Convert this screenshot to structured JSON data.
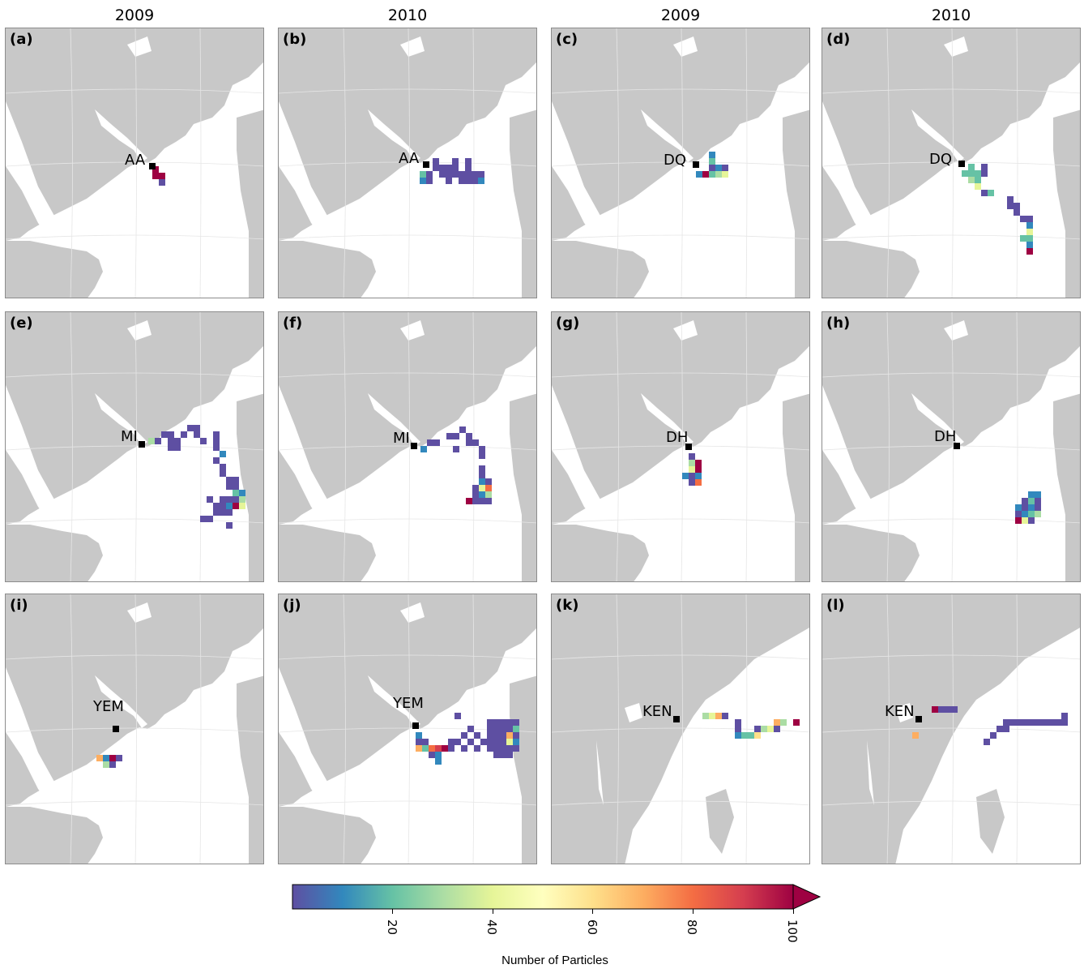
{
  "column_titles": [
    "2009",
    "2010",
    "2009",
    "2010"
  ],
  "colors": {
    "land": "#c8c8c8",
    "ocean": "#ffffff",
    "border": "#a9a9a9",
    "colormap": [
      "#5e4fa2",
      "#3288bd",
      "#66c2a5",
      "#abdda4",
      "#e6f598",
      "#ffffbf",
      "#fee08b",
      "#fdae61",
      "#f46d43",
      "#d53e4f",
      "#9e0142"
    ]
  },
  "panels": [
    {
      "label": "(a)",
      "site": "AA",
      "map": "arabia",
      "cells": [
        [
          0,
          0,
          "#9e0142"
        ],
        [
          0,
          1,
          "#9e0142"
        ],
        [
          1,
          1,
          "#9e0142"
        ],
        [
          1,
          2,
          "#5e4fa2"
        ]
      ]
    },
    {
      "label": "(b)",
      "site": "AA",
      "map": "arabia",
      "cells": [
        [
          -1,
          1,
          "#66c2a5"
        ],
        [
          0,
          1,
          "#5e4fa2"
        ],
        [
          1,
          0,
          "#5e4fa2"
        ],
        [
          1,
          -1,
          "#5e4fa2"
        ],
        [
          2,
          0,
          "#5e4fa2"
        ],
        [
          2,
          1,
          "#5e4fa2"
        ],
        [
          3,
          0,
          "#5e4fa2"
        ],
        [
          3,
          1,
          "#5e4fa2"
        ],
        [
          4,
          -1,
          "#5e4fa2"
        ],
        [
          4,
          0,
          "#5e4fa2"
        ],
        [
          4,
          1,
          "#5e4fa2"
        ],
        [
          5,
          1,
          "#5e4fa2"
        ],
        [
          5,
          2,
          "#5e4fa2"
        ],
        [
          6,
          -1,
          "#5e4fa2"
        ],
        [
          6,
          0,
          "#5e4fa2"
        ],
        [
          6,
          1,
          "#5e4fa2"
        ],
        [
          6,
          2,
          "#5e4fa2"
        ],
        [
          7,
          1,
          "#5e4fa2"
        ],
        [
          7,
          2,
          "#5e4fa2"
        ],
        [
          8,
          1,
          "#5e4fa2"
        ],
        [
          8,
          2,
          "#3288bd"
        ],
        [
          0,
          2,
          "#5e4fa2"
        ],
        [
          -1,
          2,
          "#3288bd"
        ],
        [
          3,
          2,
          "#5e4fa2"
        ]
      ]
    },
    {
      "label": "(c)",
      "site": "DQ",
      "map": "arabia",
      "cells": [
        [
          1,
          1,
          "#9e0142"
        ],
        [
          2,
          0,
          "#5e4fa2"
        ],
        [
          2,
          1,
          "#66c2a5"
        ],
        [
          3,
          0,
          "#3288bd"
        ],
        [
          3,
          1,
          "#abdda4"
        ],
        [
          4,
          0,
          "#5e4fa2"
        ],
        [
          4,
          1,
          "#e6f598"
        ],
        [
          0,
          1,
          "#3288bd"
        ],
        [
          2,
          -1,
          "#66c2a5"
        ],
        [
          2,
          -2,
          "#3288bd"
        ]
      ]
    },
    {
      "label": "(d)",
      "site": "DQ",
      "map": "arabia",
      "cells": [
        [
          0,
          1,
          "#66c2a5"
        ],
        [
          1,
          1,
          "#66c2a5"
        ],
        [
          1,
          0,
          "#66c2a5"
        ],
        [
          2,
          1,
          "#66c2a5"
        ],
        [
          3,
          0,
          "#5e4fa2"
        ],
        [
          3,
          1,
          "#5e4fa2"
        ],
        [
          2,
          2,
          "#66c2a5"
        ],
        [
          1,
          2,
          "#abdda4"
        ],
        [
          2,
          3,
          "#e6f598"
        ],
        [
          3,
          4,
          "#5e4fa2"
        ],
        [
          4,
          4,
          "#66c2a5"
        ],
        [
          7,
          5,
          "#5e4fa2"
        ],
        [
          7,
          6,
          "#5e4fa2"
        ],
        [
          8,
          6,
          "#5e4fa2"
        ],
        [
          8,
          7,
          "#5e4fa2"
        ],
        [
          9,
          8,
          "#5e4fa2"
        ],
        [
          10,
          8,
          "#5e4fa2"
        ],
        [
          10,
          9,
          "#3288bd"
        ],
        [
          10,
          10,
          "#e6f598"
        ],
        [
          10,
          11,
          "#66c2a5"
        ],
        [
          9,
          11,
          "#66c2a5"
        ],
        [
          10,
          12,
          "#3288bd"
        ],
        [
          10,
          13,
          "#9e0142"
        ]
      ]
    },
    {
      "label": "(e)",
      "site": "MI",
      "map": "arabia",
      "cells": [
        [
          1,
          -1,
          "#abdda4"
        ],
        [
          2,
          -1,
          "#5e4fa2"
        ],
        [
          3,
          -2,
          "#5e4fa2"
        ],
        [
          4,
          -2,
          "#5e4fa2"
        ],
        [
          4,
          -1,
          "#5e4fa2"
        ],
        [
          4,
          0,
          "#5e4fa2"
        ],
        [
          5,
          -1,
          "#5e4fa2"
        ],
        [
          5,
          0,
          "#5e4fa2"
        ],
        [
          6,
          -2,
          "#5e4fa2"
        ],
        [
          7,
          -3,
          "#5e4fa2"
        ],
        [
          8,
          -3,
          "#5e4fa2"
        ],
        [
          8,
          -2,
          "#5e4fa2"
        ],
        [
          9,
          -1,
          "#5e4fa2"
        ],
        [
          11,
          -2,
          "#5e4fa2"
        ],
        [
          11,
          -1,
          "#5e4fa2"
        ],
        [
          11,
          0,
          "#5e4fa2"
        ],
        [
          12,
          1,
          "#3288bd"
        ],
        [
          11,
          2,
          "#5e4fa2"
        ],
        [
          12,
          3,
          "#5e4fa2"
        ],
        [
          12,
          4,
          "#5e4fa2"
        ],
        [
          13,
          5,
          "#5e4fa2"
        ],
        [
          14,
          5,
          "#5e4fa2"
        ],
        [
          14,
          6,
          "#5e4fa2"
        ],
        [
          13,
          6,
          "#5e4fa2"
        ],
        [
          14,
          7,
          "#66c2a5"
        ],
        [
          15,
          7,
          "#3288bd"
        ],
        [
          14,
          8,
          "#5e4fa2"
        ],
        [
          15,
          8,
          "#abdda4"
        ],
        [
          13,
          8,
          "#5e4fa2"
        ],
        [
          12,
          8,
          "#5e4fa2"
        ],
        [
          11,
          9,
          "#5e4fa2"
        ],
        [
          12,
          9,
          "#5e4fa2"
        ],
        [
          13,
          9,
          "#3288bd"
        ],
        [
          14,
          9,
          "#9e0142"
        ],
        [
          15,
          9,
          "#e6f598"
        ],
        [
          11,
          10,
          "#5e4fa2"
        ],
        [
          12,
          10,
          "#5e4fa2"
        ],
        [
          13,
          10,
          "#5e4fa2"
        ],
        [
          10,
          8,
          "#5e4fa2"
        ],
        [
          9,
          11,
          "#5e4fa2"
        ],
        [
          10,
          11,
          "#5e4fa2"
        ],
        [
          13,
          12,
          "#5e4fa2"
        ]
      ]
    },
    {
      "label": "(f)",
      "site": "MI",
      "map": "arabia",
      "cells": [
        [
          1,
          0,
          "#3288bd"
        ],
        [
          2,
          -1,
          "#5e4fa2"
        ],
        [
          3,
          -1,
          "#5e4fa2"
        ],
        [
          5,
          -2,
          "#5e4fa2"
        ],
        [
          6,
          -2,
          "#5e4fa2"
        ],
        [
          7,
          -3,
          "#5e4fa2"
        ],
        [
          8,
          -2,
          "#5e4fa2"
        ],
        [
          8,
          -1,
          "#5e4fa2"
        ],
        [
          6,
          0,
          "#5e4fa2"
        ],
        [
          9,
          -1,
          "#5e4fa2"
        ],
        [
          10,
          0,
          "#5e4fa2"
        ],
        [
          10,
          1,
          "#5e4fa2"
        ],
        [
          10,
          3,
          "#5e4fa2"
        ],
        [
          10,
          4,
          "#5e4fa2"
        ],
        [
          10,
          5,
          "#3288bd"
        ],
        [
          11,
          5,
          "#5e4fa2"
        ],
        [
          10,
          6,
          "#e6f598"
        ],
        [
          11,
          6,
          "#f46d43"
        ],
        [
          9,
          6,
          "#5e4fa2"
        ],
        [
          9,
          7,
          "#5e4fa2"
        ],
        [
          10,
          7,
          "#3288bd"
        ],
        [
          11,
          7,
          "#abdda4"
        ],
        [
          9,
          8,
          "#5e4fa2"
        ],
        [
          10,
          8,
          "#5e4fa2"
        ],
        [
          11,
          8,
          "#5e4fa2"
        ],
        [
          8,
          8,
          "#9e0142"
        ]
      ]
    },
    {
      "label": "(g)",
      "site": "DH",
      "map": "arabia",
      "cells": [
        [
          0,
          1,
          "#5e4fa2"
        ],
        [
          0,
          2,
          "#abdda4"
        ],
        [
          1,
          2,
          "#9e0142"
        ],
        [
          0,
          3,
          "#e6f598"
        ],
        [
          1,
          3,
          "#9e0142"
        ],
        [
          0,
          4,
          "#5e4fa2"
        ],
        [
          1,
          4,
          "#3288bd"
        ],
        [
          -1,
          4,
          "#3288bd"
        ],
        [
          1,
          5,
          "#f46d43"
        ],
        [
          0,
          5,
          "#5e4fa2"
        ]
      ]
    },
    {
      "label": "(h)",
      "site": "DH",
      "map": "arabia",
      "cells": [
        [
          11,
          7,
          "#3288bd"
        ],
        [
          12,
          7,
          "#3288bd"
        ],
        [
          10,
          8,
          "#5e4fa2"
        ],
        [
          11,
          8,
          "#66c2a5"
        ],
        [
          12,
          8,
          "#5e4fa2"
        ],
        [
          9,
          9,
          "#3288bd"
        ],
        [
          10,
          9,
          "#5e4fa2"
        ],
        [
          11,
          9,
          "#3288bd"
        ],
        [
          12,
          9,
          "#5e4fa2"
        ],
        [
          9,
          10,
          "#5e4fa2"
        ],
        [
          10,
          10,
          "#3288bd"
        ],
        [
          11,
          10,
          "#66c2a5"
        ],
        [
          12,
          10,
          "#abdda4"
        ],
        [
          9,
          11,
          "#9e0142"
        ],
        [
          10,
          11,
          "#e6f598"
        ],
        [
          11,
          11,
          "#5e4fa2"
        ]
      ]
    },
    {
      "label": "(i)",
      "site": "YEM",
      "map": "arabia",
      "cells": [
        [
          -3,
          4,
          "#fdae61"
        ],
        [
          -2,
          4,
          "#3288bd"
        ],
        [
          -1,
          4,
          "#9e0142"
        ],
        [
          0,
          4,
          "#5e4fa2"
        ],
        [
          -1,
          5,
          "#5e4fa2"
        ],
        [
          -2,
          5,
          "#abdda4"
        ]
      ]
    },
    {
      "label": "(j)",
      "site": "YEM",
      "map": "arabia",
      "cells": [
        [
          0,
          1,
          "#3288bd"
        ],
        [
          0,
          2,
          "#5e4fa2"
        ],
        [
          1,
          2,
          "#5e4fa2"
        ],
        [
          1,
          3,
          "#66c2a5"
        ],
        [
          0,
          3,
          "#fdae61"
        ],
        [
          2,
          3,
          "#f46d43"
        ],
        [
          3,
          3,
          "#d53e4f"
        ],
        [
          4,
          3,
          "#9e0142"
        ],
        [
          5,
          2,
          "#5e4fa2"
        ],
        [
          3,
          4,
          "#3288bd"
        ],
        [
          3,
          5,
          "#3288bd"
        ],
        [
          2,
          4,
          "#5e4fa2"
        ],
        [
          5,
          3,
          "#5e4fa2"
        ],
        [
          6,
          2,
          "#5e4fa2"
        ],
        [
          7,
          1,
          "#5e4fa2"
        ],
        [
          8,
          0,
          "#5e4fa2"
        ],
        [
          6,
          -2,
          "#5e4fa2"
        ],
        [
          7,
          3,
          "#5e4fa2"
        ],
        [
          8,
          2,
          "#5e4fa2"
        ],
        [
          9,
          1,
          "#5e4fa2"
        ],
        [
          9,
          3,
          "#5e4fa2"
        ],
        [
          10,
          2,
          "#5e4fa2"
        ],
        [
          11,
          -1,
          "#5e4fa2"
        ],
        [
          12,
          -1,
          "#5e4fa2"
        ],
        [
          13,
          -1,
          "#5e4fa2"
        ],
        [
          14,
          -1,
          "#5e4fa2"
        ],
        [
          15,
          -1,
          "#5e4fa2"
        ],
        [
          11,
          0,
          "#5e4fa2"
        ],
        [
          12,
          0,
          "#5e4fa2"
        ],
        [
          13,
          0,
          "#5e4fa2"
        ],
        [
          14,
          0,
          "#5e4fa2"
        ],
        [
          15,
          0,
          "#66c2a5"
        ],
        [
          11,
          1,
          "#5e4fa2"
        ],
        [
          12,
          1,
          "#5e4fa2"
        ],
        [
          13,
          1,
          "#5e4fa2"
        ],
        [
          14,
          1,
          "#fdae61"
        ],
        [
          15,
          1,
          "#5e4fa2"
        ],
        [
          11,
          2,
          "#5e4fa2"
        ],
        [
          12,
          2,
          "#5e4fa2"
        ],
        [
          13,
          2,
          "#5e4fa2"
        ],
        [
          14,
          2,
          "#e6f598"
        ],
        [
          15,
          2,
          "#3288bd"
        ],
        [
          11,
          3,
          "#5e4fa2"
        ],
        [
          12,
          3,
          "#5e4fa2"
        ],
        [
          13,
          3,
          "#5e4fa2"
        ],
        [
          14,
          3,
          "#5e4fa2"
        ],
        [
          15,
          3,
          "#5e4fa2"
        ],
        [
          12,
          4,
          "#5e4fa2"
        ],
        [
          13,
          4,
          "#5e4fa2"
        ],
        [
          14,
          4,
          "#5e4fa2"
        ]
      ]
    },
    {
      "label": "(k)",
      "site": "KEN",
      "map": "africa",
      "cells": [
        [
          4,
          -1,
          "#abdda4"
        ],
        [
          5,
          -1,
          "#e6f598"
        ],
        [
          6,
          -1,
          "#fdae61"
        ],
        [
          7,
          -1,
          "#5e4fa2"
        ],
        [
          9,
          0,
          "#5e4fa2"
        ],
        [
          9,
          1,
          "#5e4fa2"
        ],
        [
          9,
          2,
          "#3288bd"
        ],
        [
          10,
          2,
          "#66c2a5"
        ],
        [
          11,
          2,
          "#66c2a5"
        ],
        [
          12,
          2,
          "#fee08b"
        ],
        [
          12,
          1,
          "#5e4fa2"
        ],
        [
          13,
          1,
          "#abdda4"
        ],
        [
          14,
          1,
          "#e6f598"
        ],
        [
          15,
          1,
          "#5e4fa2"
        ],
        [
          15,
          0,
          "#fdae61"
        ],
        [
          16,
          0,
          "#abdda4"
        ],
        [
          18,
          0,
          "#9e0142"
        ]
      ]
    },
    {
      "label": "(l)",
      "site": "KEN",
      "map": "africa",
      "cells": [
        [
          2,
          -2,
          "#9e0142"
        ],
        [
          3,
          -2,
          "#5e4fa2"
        ],
        [
          4,
          -2,
          "#5e4fa2"
        ],
        [
          5,
          -2,
          "#5e4fa2"
        ],
        [
          -1,
          2,
          "#fdae61"
        ],
        [
          10,
          3,
          "#5e4fa2"
        ],
        [
          11,
          2,
          "#5e4fa2"
        ],
        [
          12,
          1,
          "#5e4fa2"
        ],
        [
          13,
          0,
          "#5e4fa2"
        ],
        [
          14,
          0,
          "#5e4fa2"
        ],
        [
          15,
          0,
          "#5e4fa2"
        ],
        [
          16,
          0,
          "#5e4fa2"
        ],
        [
          17,
          0,
          "#5e4fa2"
        ],
        [
          18,
          0,
          "#5e4fa2"
        ],
        [
          19,
          0,
          "#5e4fa2"
        ],
        [
          20,
          0,
          "#5e4fa2"
        ],
        [
          21,
          0,
          "#5e4fa2"
        ],
        [
          22,
          0,
          "#5e4fa2"
        ],
        [
          22,
          -1,
          "#5e4fa2"
        ],
        [
          13,
          1,
          "#5e4fa2"
        ]
      ]
    }
  ],
  "colorbar": {
    "title": "Number of Particles",
    "ticks": [
      {
        "label": "20",
        "value": 20
      },
      {
        "label": "40",
        "value": 40
      },
      {
        "label": "60",
        "value": 60
      },
      {
        "label": "80",
        "value": 80
      },
      {
        "label": "100",
        "value": 100
      }
    ],
    "min": 0,
    "max": 100
  }
}
